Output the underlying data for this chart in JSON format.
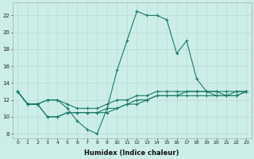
{
  "x": [
    0,
    1,
    2,
    3,
    4,
    5,
    6,
    7,
    8,
    9,
    10,
    11,
    12,
    13,
    14,
    15,
    16,
    17,
    18,
    19,
    20,
    21,
    22,
    23
  ],
  "line1": [
    13.0,
    11.5,
    11.5,
    12.0,
    12.0,
    11.0,
    9.5,
    8.5,
    8.0,
    11.0,
    15.5,
    19.0,
    22.5,
    22.0,
    22.0,
    21.5,
    17.5,
    19.0,
    14.5,
    13.0,
    13.0,
    12.5,
    13.0,
    13.0
  ],
  "line2": [
    13.0,
    11.5,
    11.5,
    12.0,
    12.0,
    11.5,
    11.0,
    11.0,
    11.0,
    11.5,
    12.0,
    12.0,
    12.5,
    12.5,
    13.0,
    13.0,
    13.0,
    13.0,
    13.0,
    13.0,
    13.0,
    13.0,
    13.0,
    13.0
  ],
  "line3": [
    13.0,
    11.5,
    11.5,
    10.0,
    10.0,
    10.5,
    10.5,
    10.5,
    10.5,
    11.0,
    11.0,
    11.5,
    12.0,
    12.0,
    12.5,
    12.5,
    12.5,
    13.0,
    13.0,
    13.0,
    12.5,
    12.5,
    12.5,
    13.0
  ],
  "line4": [
    13.0,
    11.5,
    11.5,
    10.0,
    10.0,
    10.5,
    10.5,
    10.5,
    10.5,
    10.5,
    11.0,
    11.5,
    11.5,
    12.0,
    12.5,
    12.5,
    12.5,
    12.5,
    12.5,
    12.5,
    12.5,
    12.5,
    12.5,
    13.0
  ],
  "bg_color": "#cceee8",
  "grid_major_color": "#c0dcd8",
  "grid_minor_color": "#d8efec",
  "line_color": "#1a7a6a",
  "xlabel": "Humidex (Indice chaleur)",
  "ylabel_ticks": [
    8,
    10,
    12,
    14,
    16,
    18,
    20,
    22
  ],
  "ylim": [
    7.5,
    23.5
  ],
  "xlim": [
    -0.5,
    23.5
  ]
}
